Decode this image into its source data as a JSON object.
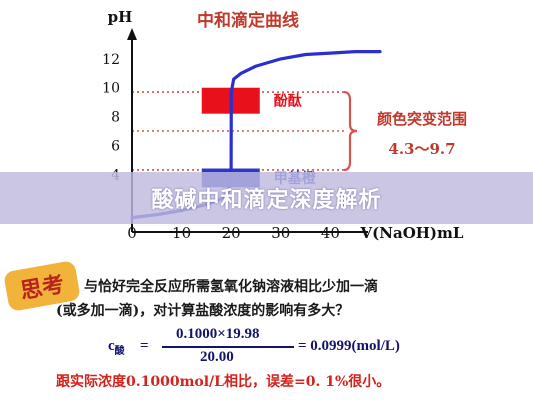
{
  "chart_data": {
    "type": "line",
    "title": "中和滴定曲线",
    "ylabel": "pH",
    "xlabel": "V(NaOH)mL",
    "xlim": [
      0,
      50
    ],
    "ylim": [
      0,
      14
    ],
    "x_ticks": [
      "0",
      "10",
      "20",
      "30",
      "40"
    ],
    "y_ticks": [
      "12",
      "10",
      "8",
      "6",
      "4"
    ],
    "series": [
      {
        "x": [
          0,
          5,
          10,
          15,
          18,
          19.5,
          19.98,
          20,
          20.02,
          20.5,
          22,
          25,
          30,
          35,
          40,
          45,
          50
        ],
        "y": [
          1.0,
          1.2,
          1.5,
          1.9,
          2.3,
          2.8,
          4.3,
          7.0,
          9.7,
          10.6,
          11.0,
          11.5,
          12.0,
          12.3,
          12.4,
          12.5,
          12.5
        ]
      }
    ],
    "reference_lines": [
      {
        "y": 9.7,
        "style": "dotted",
        "color": "#c0392b"
      },
      {
        "y": 7.0,
        "style": "dotted",
        "color": "#c0392b"
      },
      {
        "y": 4.3,
        "style": "dotted",
        "color": "#c0392b"
      }
    ],
    "indicators": [
      {
        "label": "酚酞",
        "range": [
          8.2,
          10.0
        ],
        "color": "#e8101a"
      },
      {
        "label": "甲基橙",
        "range": [
          3.1,
          4.4
        ],
        "color": "#2a38c8"
      }
    ],
    "annotation": {
      "title": "颜色突变范围",
      "range_label": "4.3～9.7"
    }
  },
  "banner": {
    "text": "酸碱中和滴定深度解析"
  },
  "badge": {
    "text": "思考"
  },
  "question": {
    "line1": "与恰好完全反应所需氢氧化钠溶液相比少加一滴",
    "line2": "(或多加一滴)，对计算盐酸浓度的影响有多大？"
  },
  "formula": {
    "lhs_main": "c",
    "lhs_sub": "酸",
    "equals": "=",
    "numerator": "0.1000×19.98",
    "denominator": "20.00",
    "result": "= 0.0999(mol/L)"
  },
  "conclusion": "跟实际浓度0.1000mol/L相比，误差=0. 1%很小。",
  "colors": {
    "curve": "#2b2fd0",
    "axis": "#111111",
    "title": "#c0392b",
    "guide": "#c0392b",
    "bracket": "#d9534f",
    "formula": "#13136e",
    "conclusion": "#d4221c"
  }
}
